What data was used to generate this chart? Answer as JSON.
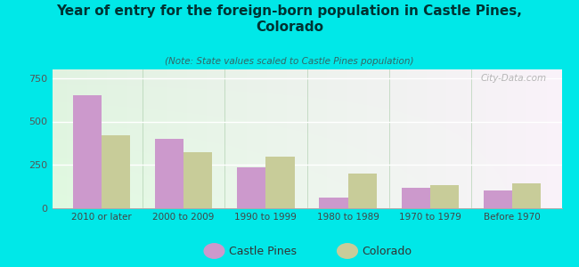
{
  "title": "Year of entry for the foreign-born population in Castle Pines,\nColorado",
  "subtitle": "(Note: State values scaled to Castle Pines population)",
  "categories": [
    "2010 or later",
    "2000 to 2009",
    "1990 to 1999",
    "1980 to 1989",
    "1970 to 1979",
    "Before 1970"
  ],
  "castle_pines": [
    650,
    400,
    235,
    60,
    120,
    105
  ],
  "colorado": [
    420,
    325,
    295,
    200,
    135,
    145
  ],
  "castle_pines_color": "#cc99cc",
  "colorado_color": "#c8cc99",
  "background_color": "#00e8e8",
  "ylim": [
    0,
    800
  ],
  "yticks": [
    0,
    250,
    500,
    750
  ],
  "bar_width": 0.35,
  "watermark": "City-Data.com",
  "legend_castle_pines": "Castle Pines",
  "legend_colorado": "Colorado"
}
